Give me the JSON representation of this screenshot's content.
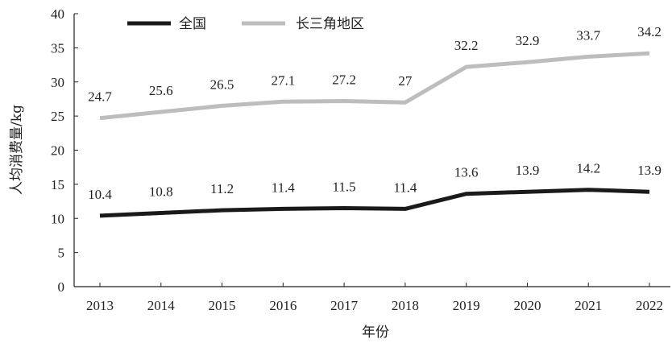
{
  "chart_data": {
    "type": "line",
    "categories": [
      "2013",
      "2014",
      "2015",
      "2016",
      "2017",
      "2018",
      "2019",
      "2020",
      "2021",
      "2022"
    ],
    "series": [
      {
        "name": "全国",
        "color": "#1a1a1a",
        "values": [
          10.4,
          10.8,
          11.2,
          11.4,
          11.5,
          11.4,
          13.6,
          13.9,
          14.2,
          13.9
        ],
        "labels": [
          "10.4",
          "10.8",
          "11.2",
          "11.4",
          "11.5",
          "11.4",
          "13.6",
          "13.9",
          "14.2",
          "13.9"
        ]
      },
      {
        "name": "长三角地区",
        "color": "#bdbdbd",
        "values": [
          24.7,
          25.6,
          26.5,
          27.1,
          27.2,
          27,
          32.2,
          32.9,
          33.7,
          34.2
        ],
        "labels": [
          "24.7",
          "25.6",
          "26.5",
          "27.1",
          "27.2",
          "27",
          "32.2",
          "32.9",
          "33.7",
          "34.2"
        ]
      }
    ],
    "xlabel": "年份",
    "ylabel": "人均消费量/kg",
    "ylim": [
      0,
      40
    ],
    "yticks": [
      "0",
      "5",
      "10",
      "15",
      "20",
      "25",
      "30",
      "35",
      "40"
    ],
    "grid": false,
    "legend_position": "top-left"
  }
}
